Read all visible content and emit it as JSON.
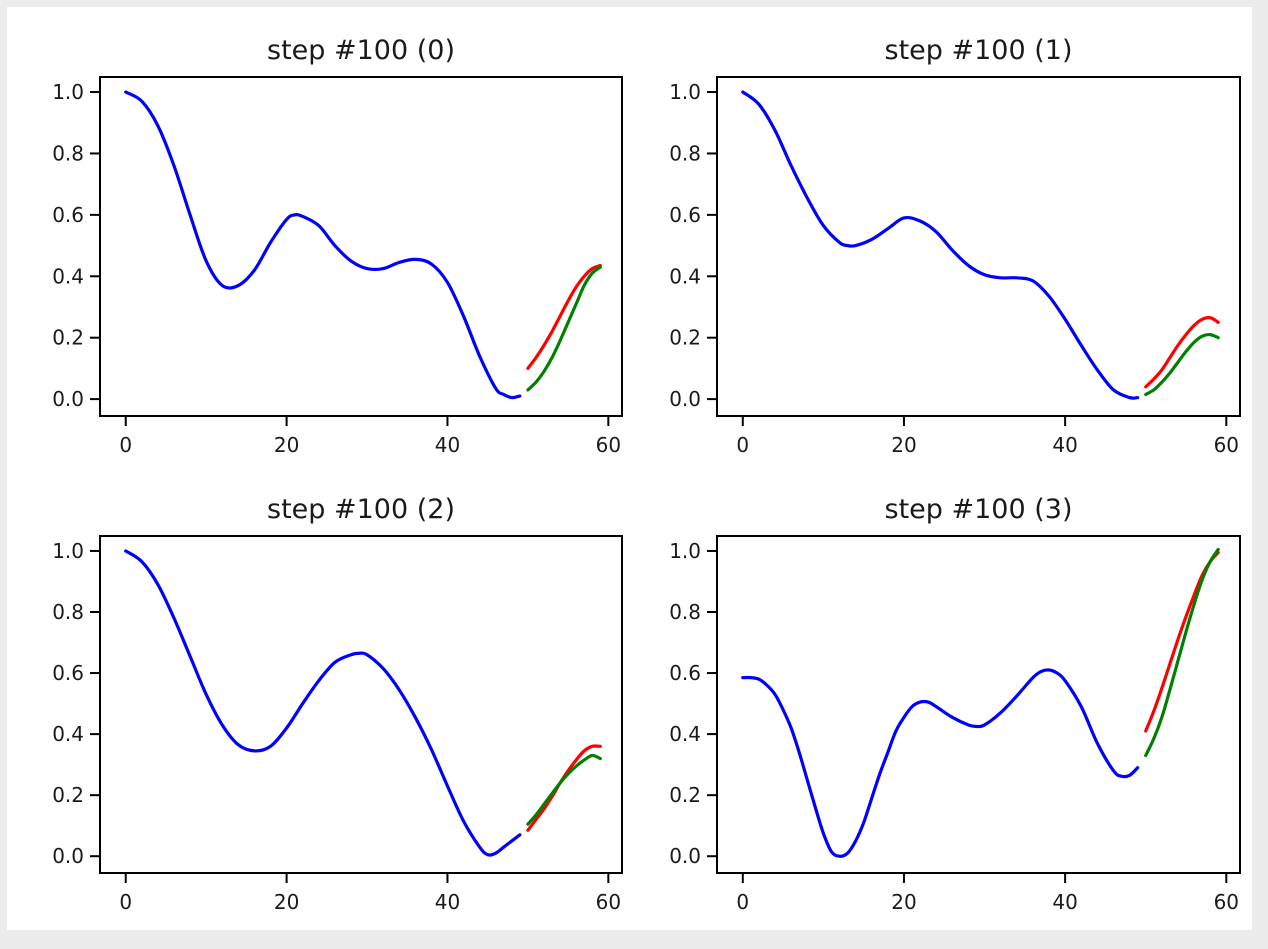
{
  "figure": {
    "background": "#ffffff",
    "outer_border_color": "#ececec",
    "axes_frame_color": "#000000",
    "tick_label_color": "#1a1a1a",
    "layout": "2x2 grid of subplots"
  },
  "chart_data": [
    {
      "type": "line",
      "title": "step #100 (0)",
      "xlabel": "",
      "ylabel": "",
      "xlim": [
        -3.2,
        61.7
      ],
      "ylim": [
        -0.055,
        1.049
      ],
      "xticks": [
        0,
        20,
        40,
        60
      ],
      "yticks": [
        0.0,
        0.2,
        0.4,
        0.6,
        0.8,
        1.0
      ],
      "xtick_labels": [
        "0",
        "20",
        "40",
        "60"
      ],
      "ytick_labels": [
        "0.0",
        "0.2",
        "0.4",
        "0.6",
        "0.8",
        "1.0"
      ],
      "grid": false,
      "legend": "none",
      "series": [
        {
          "name": "blue",
          "color": "#0000ff",
          "x": [
            0,
            2,
            4,
            6,
            8,
            10,
            12,
            14,
            16,
            18,
            20,
            21,
            22,
            24,
            26,
            28,
            30,
            32,
            34,
            36,
            38,
            40,
            42,
            44,
            46,
            47,
            48,
            49
          ],
          "y": [
            1.0,
            0.97,
            0.89,
            0.76,
            0.6,
            0.45,
            0.37,
            0.37,
            0.42,
            0.51,
            0.585,
            0.6,
            0.595,
            0.565,
            0.5,
            0.45,
            0.425,
            0.425,
            0.445,
            0.455,
            0.44,
            0.38,
            0.27,
            0.14,
            0.035,
            0.015,
            0.005,
            0.01
          ]
        },
        {
          "name": "red",
          "color": "#ff0000",
          "x": [
            50,
            51,
            52,
            53,
            54,
            55,
            56,
            57,
            58,
            59
          ],
          "y": [
            0.1,
            0.135,
            0.175,
            0.22,
            0.27,
            0.32,
            0.365,
            0.4,
            0.425,
            0.435
          ]
        },
        {
          "name": "green",
          "color": "#008000",
          "x": [
            50,
            51,
            52,
            53,
            54,
            55,
            56,
            57,
            58,
            59
          ],
          "y": [
            0.03,
            0.055,
            0.09,
            0.135,
            0.19,
            0.25,
            0.31,
            0.37,
            0.41,
            0.43
          ]
        }
      ]
    },
    {
      "type": "line",
      "title": "step #100 (1)",
      "xlabel": "",
      "ylabel": "",
      "xlim": [
        -3.2,
        61.7
      ],
      "ylim": [
        -0.055,
        1.049
      ],
      "xticks": [
        0,
        20,
        40,
        60
      ],
      "yticks": [
        0.0,
        0.2,
        0.4,
        0.6,
        0.8,
        1.0
      ],
      "xtick_labels": [
        "0",
        "20",
        "40",
        "60"
      ],
      "ytick_labels": [
        "0.0",
        "0.2",
        "0.4",
        "0.6",
        "0.8",
        "1.0"
      ],
      "grid": false,
      "legend": "none",
      "series": [
        {
          "name": "blue",
          "color": "#0000ff",
          "x": [
            0,
            2,
            4,
            6,
            8,
            10,
            12,
            13,
            14,
            16,
            18,
            20,
            22,
            24,
            26,
            28,
            30,
            32,
            34,
            36,
            38,
            40,
            42,
            44,
            46,
            48,
            49
          ],
          "y": [
            1.0,
            0.96,
            0.875,
            0.76,
            0.655,
            0.565,
            0.51,
            0.5,
            0.5,
            0.52,
            0.555,
            0.59,
            0.58,
            0.545,
            0.485,
            0.435,
            0.405,
            0.395,
            0.395,
            0.385,
            0.335,
            0.26,
            0.175,
            0.095,
            0.03,
            0.005,
            0.005
          ]
        },
        {
          "name": "red",
          "color": "#ff0000",
          "x": [
            50,
            51,
            52,
            53,
            54,
            55,
            56,
            57,
            58,
            59
          ],
          "y": [
            0.04,
            0.065,
            0.095,
            0.135,
            0.175,
            0.21,
            0.24,
            0.26,
            0.265,
            0.25
          ]
        },
        {
          "name": "green",
          "color": "#008000",
          "x": [
            50,
            51,
            52,
            53,
            54,
            55,
            56,
            57,
            58,
            59
          ],
          "y": [
            0.015,
            0.03,
            0.055,
            0.085,
            0.12,
            0.155,
            0.185,
            0.205,
            0.21,
            0.2
          ]
        }
      ]
    },
    {
      "type": "line",
      "title": "step #100 (2)",
      "xlabel": "",
      "ylabel": "",
      "xlim": [
        -3.2,
        61.7
      ],
      "ylim": [
        -0.055,
        1.049
      ],
      "xticks": [
        0,
        20,
        40,
        60
      ],
      "yticks": [
        0.0,
        0.2,
        0.4,
        0.6,
        0.8,
        1.0
      ],
      "xtick_labels": [
        "0",
        "20",
        "40",
        "60"
      ],
      "ytick_labels": [
        "0.0",
        "0.2",
        "0.4",
        "0.6",
        "0.8",
        "1.0"
      ],
      "grid": false,
      "legend": "none",
      "series": [
        {
          "name": "blue",
          "color": "#0000ff",
          "x": [
            0,
            2,
            4,
            6,
            8,
            10,
            12,
            14,
            16,
            18,
            20,
            22,
            24,
            26,
            28,
            29,
            30,
            32,
            34,
            36,
            38,
            40,
            42,
            44,
            45,
            46,
            47,
            48,
            49
          ],
          "y": [
            1.0,
            0.965,
            0.89,
            0.78,
            0.655,
            0.53,
            0.43,
            0.365,
            0.345,
            0.36,
            0.42,
            0.5,
            0.575,
            0.635,
            0.66,
            0.665,
            0.66,
            0.615,
            0.545,
            0.455,
            0.35,
            0.23,
            0.115,
            0.03,
            0.005,
            0.01,
            0.03,
            0.05,
            0.07
          ]
        },
        {
          "name": "red",
          "color": "#ff0000",
          "x": [
            50,
            51,
            52,
            53,
            54,
            55,
            56,
            57,
            58,
            59
          ],
          "y": [
            0.085,
            0.12,
            0.155,
            0.195,
            0.24,
            0.28,
            0.315,
            0.345,
            0.36,
            0.36
          ]
        },
        {
          "name": "green",
          "color": "#008000",
          "x": [
            50,
            51,
            52,
            53,
            54,
            55,
            56,
            57,
            58,
            59
          ],
          "y": [
            0.105,
            0.135,
            0.17,
            0.205,
            0.24,
            0.27,
            0.295,
            0.315,
            0.33,
            0.32
          ]
        }
      ]
    },
    {
      "type": "line",
      "title": "step #100 (3)",
      "xlabel": "",
      "ylabel": "",
      "xlim": [
        -3.2,
        61.7
      ],
      "ylim": [
        -0.055,
        1.049
      ],
      "xticks": [
        0,
        20,
        40,
        60
      ],
      "yticks": [
        0.0,
        0.2,
        0.4,
        0.6,
        0.8,
        1.0
      ],
      "xtick_labels": [
        "0",
        "20",
        "40",
        "60"
      ],
      "ytick_labels": [
        "0.0",
        "0.2",
        "0.4",
        "0.6",
        "0.8",
        "1.0"
      ],
      "grid": false,
      "legend": "none",
      "series": [
        {
          "name": "blue",
          "color": "#0000ff",
          "x": [
            0,
            1,
            2,
            3,
            4,
            5,
            6,
            7,
            8,
            9,
            10,
            11,
            12,
            13,
            14,
            15,
            16,
            17,
            18,
            19,
            20,
            21,
            22,
            23,
            24,
            26,
            28,
            29,
            30,
            32,
            34,
            36,
            37,
            38,
            39,
            40,
            42,
            44,
            46,
            47,
            48,
            49
          ],
          "y": [
            0.585,
            0.585,
            0.58,
            0.56,
            0.53,
            0.48,
            0.42,
            0.34,
            0.25,
            0.16,
            0.075,
            0.015,
            0.0,
            0.01,
            0.05,
            0.11,
            0.19,
            0.27,
            0.34,
            0.41,
            0.455,
            0.49,
            0.505,
            0.505,
            0.49,
            0.455,
            0.43,
            0.425,
            0.43,
            0.47,
            0.525,
            0.585,
            0.605,
            0.61,
            0.6,
            0.575,
            0.49,
            0.37,
            0.28,
            0.262,
            0.265,
            0.29
          ]
        },
        {
          "name": "red",
          "color": "#ff0000",
          "x": [
            50,
            51,
            52,
            53,
            54,
            55,
            56,
            57,
            58,
            59
          ],
          "y": [
            0.41,
            0.475,
            0.55,
            0.63,
            0.71,
            0.785,
            0.855,
            0.92,
            0.965,
            0.995
          ]
        },
        {
          "name": "green",
          "color": "#008000",
          "x": [
            50,
            51,
            52,
            53,
            54,
            55,
            56,
            57,
            58,
            59
          ],
          "y": [
            0.33,
            0.385,
            0.455,
            0.545,
            0.64,
            0.735,
            0.825,
            0.905,
            0.965,
            1.005
          ]
        }
      ]
    }
  ]
}
